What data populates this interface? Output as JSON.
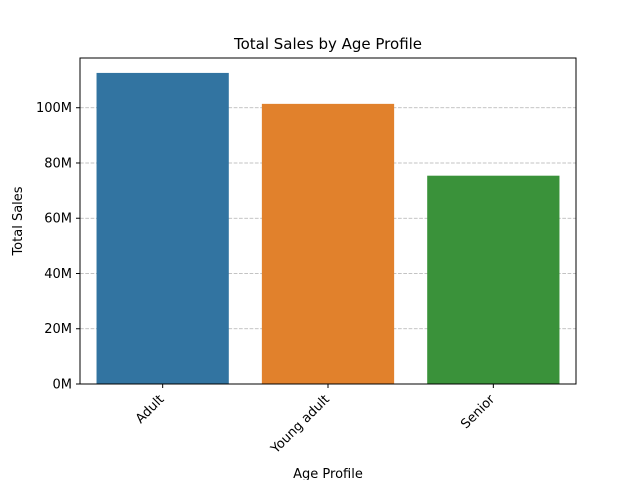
{
  "chart_data": {
    "type": "bar",
    "title": "Total Sales by Age Profile",
    "xlabel": "Age Profile",
    "ylabel": "Total Sales",
    "categories": [
      "Adult",
      "Young adult",
      "Senior"
    ],
    "values": [
      112600000,
      101400000,
      75400000
    ],
    "colors": [
      "#3274a1",
      "#e1812c",
      "#3a923a"
    ],
    "ylim": [
      0,
      118000000
    ],
    "yticks": [
      0,
      20000000,
      40000000,
      60000000,
      80000000,
      100000000
    ],
    "ytick_labels": [
      "0M",
      "20M",
      "40M",
      "60M",
      "80M",
      "100M"
    ],
    "grid": "y-dashed",
    "legend": "none"
  }
}
